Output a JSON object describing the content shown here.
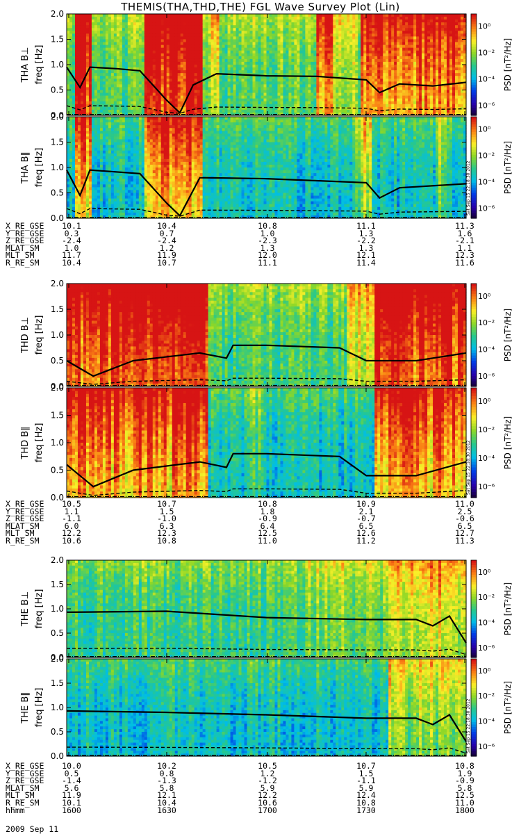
{
  "title": "THEMIS(THA,THD,THE) FGL Wave Survey Plot (Lin)",
  "date_label": "2009 Sep 11",
  "stamp": "Sat Sep 15 22:18:30 2012",
  "colorbar": {
    "label": "PSD [nT²/Hz]",
    "ticks": [
      "10⁰",
      "10⁻²",
      "10⁻⁴",
      "10⁻⁶"
    ]
  },
  "chart_data": [
    {
      "type": "heatmap",
      "id": "tha_perp",
      "ylabel": "THA B⊥",
      "yunit": "freq [Hz]",
      "ylim": [
        0,
        2
      ],
      "yticks": [
        "0.0",
        "0.5",
        "1.0",
        "1.5",
        "2.0"
      ],
      "scale": "log PSD 1e-6..1e1",
      "max_freq_curve": [
        [
          1600,
          0.95
        ],
        [
          1604,
          0.55
        ],
        [
          1607,
          0.95
        ],
        [
          1615,
          0.92
        ],
        [
          1622,
          0.88
        ],
        [
          1630,
          0.3
        ],
        [
          1634,
          0.05
        ],
        [
          1638,
          0.6
        ],
        [
          1645,
          0.82
        ],
        [
          1700,
          0.78
        ],
        [
          1715,
          0.77
        ],
        [
          1730,
          0.7
        ],
        [
          1734,
          0.45
        ],
        [
          1740,
          0.62
        ],
        [
          1750,
          0.58
        ],
        [
          1800,
          0.65
        ]
      ]
    },
    {
      "type": "heatmap",
      "id": "tha_par",
      "ylabel": "THA B∥",
      "yunit": "freq [Hz]",
      "ylim": [
        0,
        2
      ],
      "yticks": [
        "0.0",
        "0.5",
        "1.0",
        "1.5",
        "2.0"
      ],
      "max_freq_curve": [
        [
          1600,
          0.95
        ],
        [
          1604,
          0.45
        ],
        [
          1607,
          0.95
        ],
        [
          1622,
          0.88
        ],
        [
          1630,
          0.3
        ],
        [
          1634,
          0.05
        ],
        [
          1640,
          0.8
        ],
        [
          1700,
          0.78
        ],
        [
          1730,
          0.7
        ],
        [
          1734,
          0.4
        ],
        [
          1740,
          0.6
        ],
        [
          1800,
          0.68
        ]
      ]
    },
    {
      "type": "heatmap",
      "id": "thd_perp",
      "ylabel": "THD B⊥",
      "yunit": "freq [Hz]",
      "ylim": [
        0,
        2
      ],
      "yticks": [
        "0.0",
        "0.5",
        "1.0",
        "1.5",
        "2.0"
      ],
      "max_freq_curve": [
        [
          1600,
          0.5
        ],
        [
          1608,
          0.2
        ],
        [
          1620,
          0.5
        ],
        [
          1640,
          0.65
        ],
        [
          1648,
          0.55
        ],
        [
          1650,
          0.8
        ],
        [
          1700,
          0.8
        ],
        [
          1722,
          0.75
        ],
        [
          1730,
          0.5
        ],
        [
          1745,
          0.5
        ],
        [
          1800,
          0.65
        ]
      ]
    },
    {
      "type": "heatmap",
      "id": "thd_par",
      "ylabel": "THD B∥",
      "yunit": "freq [Hz]",
      "ylim": [
        0,
        2
      ],
      "yticks": [
        "0.0",
        "0.5",
        "1.0",
        "1.5",
        "2.0"
      ],
      "max_freq_curve": [
        [
          1600,
          0.6
        ],
        [
          1608,
          0.2
        ],
        [
          1620,
          0.5
        ],
        [
          1640,
          0.65
        ],
        [
          1648,
          0.55
        ],
        [
          1650,
          0.8
        ],
        [
          1700,
          0.8
        ],
        [
          1722,
          0.75
        ],
        [
          1730,
          0.4
        ],
        [
          1745,
          0.4
        ],
        [
          1800,
          0.65
        ]
      ]
    },
    {
      "type": "heatmap",
      "id": "the_perp",
      "ylabel": "THE B⊥",
      "yunit": "freq [Hz]",
      "ylim": [
        0,
        2
      ],
      "yticks": [
        "0.0",
        "0.5",
        "1.0",
        "1.5",
        "2.0"
      ],
      "max_freq_curve": [
        [
          1600,
          0.93
        ],
        [
          1630,
          0.95
        ],
        [
          1700,
          0.82
        ],
        [
          1730,
          0.78
        ],
        [
          1745,
          0.78
        ],
        [
          1750,
          0.65
        ],
        [
          1755,
          0.85
        ],
        [
          1800,
          0.3
        ]
      ]
    },
    {
      "type": "heatmap",
      "id": "the_par",
      "ylabel": "THE B∥",
      "yunit": "freq [Hz]",
      "ylim": [
        0,
        2
      ],
      "yticks": [
        "0.0",
        "0.5",
        "1.0",
        "1.5",
        "2.0"
      ],
      "max_freq_curve": [
        [
          1600,
          0.93
        ],
        [
          1630,
          0.9
        ],
        [
          1700,
          0.85
        ],
        [
          1730,
          0.78
        ],
        [
          1745,
          0.78
        ],
        [
          1750,
          0.65
        ],
        [
          1755,
          0.85
        ],
        [
          1800,
          0.3
        ]
      ]
    }
  ],
  "ephemeris": [
    {
      "rows": [
        {
          "label": "X_RE_GSE",
          "values": [
            "10.1",
            "10.4",
            "10.8",
            "11.1",
            "11.3"
          ]
        },
        {
          "label": "Y_RE_GSE",
          "values": [
            "0.3",
            "0.7",
            "1.0",
            "1.3",
            "1.6"
          ]
        },
        {
          "label": "Z_RE_GSE",
          "values": [
            "-2.4",
            "-2.4",
            "-2.3",
            "-2.2",
            "-2.1"
          ]
        },
        {
          "label": "MLAT_SM",
          "values": [
            "1.0",
            "1.2",
            "1.3",
            "1.3",
            "1.1"
          ]
        },
        {
          "label": "MLT_SM",
          "values": [
            "11.7",
            "11.9",
            "12.0",
            "12.1",
            "12.3"
          ]
        },
        {
          "label": "R_RE_SM",
          "values": [
            "10.4",
            "10.7",
            "11.1",
            "11.4",
            "11.6"
          ]
        }
      ]
    },
    {
      "rows": [
        {
          "label": "X_RE_GSE",
          "values": [
            "10.5",
            "10.7",
            "10.8",
            "10.9",
            "11.0"
          ]
        },
        {
          "label": "Y_RE_GSE",
          "values": [
            "1.1",
            "1.5",
            "1.8",
            "2.1",
            "2.5"
          ]
        },
        {
          "label": "Z_RE_GSE",
          "values": [
            "-1.1",
            "-1.0",
            "-0.9",
            "-0.7",
            "-0.6"
          ]
        },
        {
          "label": "MLAT_SM",
          "values": [
            "6.0",
            "6.3",
            "6.4",
            "6.5",
            "6.5"
          ]
        },
        {
          "label": "MLT_SM",
          "values": [
            "12.2",
            "12.3",
            "12.5",
            "12.6",
            "12.7"
          ]
        },
        {
          "label": "R_RE_SM",
          "values": [
            "10.6",
            "10.8",
            "11.0",
            "11.2",
            "11.3"
          ]
        }
      ]
    },
    {
      "rows": [
        {
          "label": "X_RE_GSE",
          "values": [
            "10.0",
            "10.2",
            "10.5",
            "10.7",
            "10.8"
          ]
        },
        {
          "label": "Y_RE_GSE",
          "values": [
            "0.5",
            "0.8",
            "1.2",
            "1.5",
            "1.9"
          ]
        },
        {
          "label": "Z_RE_GSE",
          "values": [
            "-1.4",
            "-1.3",
            "-1.2",
            "-1.1",
            "-0.9"
          ]
        },
        {
          "label": "MLAT_SM",
          "values": [
            "5.6",
            "5.8",
            "5.9",
            "5.9",
            "5.8"
          ]
        },
        {
          "label": "MLT_SM",
          "values": [
            "11.9",
            "12.1",
            "12.2",
            "12.4",
            "12.5"
          ]
        },
        {
          "label": "R_RE_SM",
          "values": [
            "10.1",
            "10.4",
            "10.6",
            "10.8",
            "11.0"
          ]
        },
        {
          "label": "hhmm",
          "values": [
            "1600",
            "1630",
            "1700",
            "1730",
            "1800"
          ]
        }
      ]
    }
  ]
}
